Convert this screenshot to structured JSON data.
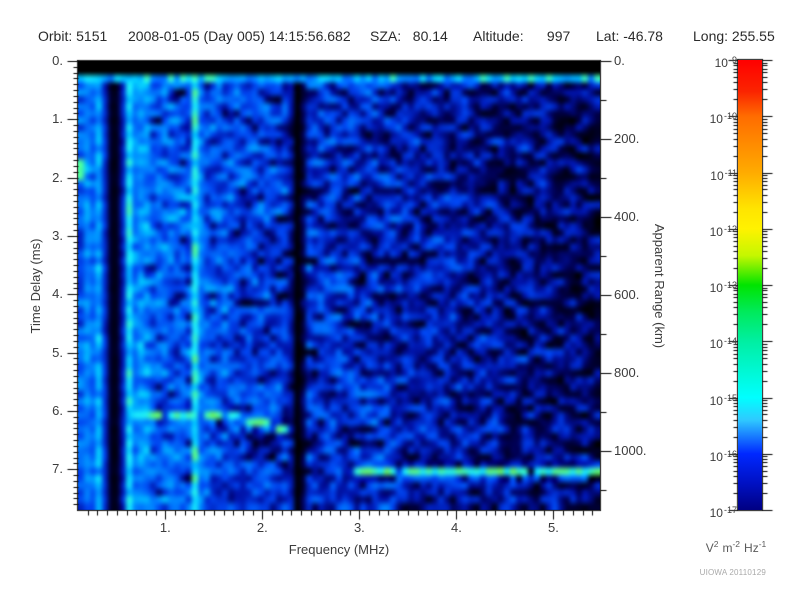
{
  "header": {
    "orbit": "Orbit: 5151",
    "datetime": "2008-01-05 (Day 005) 14:15:56.682",
    "sza": "SZA:   80.14",
    "altitude": "Altitude:      997",
    "lat": "Lat: -46.78",
    "long": "Long: 255.55"
  },
  "footer": {
    "credit": "UIOWA 20110129"
  },
  "chart_data": {
    "type": "heatmap",
    "title": "",
    "xlabel": "Frequency (MHz)",
    "ylabel": "Time Delay (ms)",
    "y2label": "Apparent Range (km)",
    "x_range_mhz": [
      0.1,
      5.48
    ],
    "y_range_ms": [
      0,
      7.7
    ],
    "y2_range_km": [
      0,
      1150
    ],
    "x_major_ticks": [
      1,
      2,
      3,
      4,
      5
    ],
    "x_major_labels": [
      "1.",
      "2.",
      "3.",
      "4.",
      "5."
    ],
    "x_minor_step_mhz": 0.1,
    "y_major_ticks": [
      0,
      1,
      2,
      3,
      4,
      5,
      6,
      7
    ],
    "y_major_labels": [
      "0.",
      "1.",
      "2.",
      "3.",
      "4.",
      "5.",
      "6.",
      "7."
    ],
    "y_minor_step_ms": 0.1,
    "y2_major_ticks": [
      0,
      200,
      400,
      600,
      800,
      1000
    ],
    "y2_major_labels": [
      "0.",
      "200.",
      "400.",
      "600.",
      "800.",
      "1000."
    ],
    "y2_minor_step_km": 100,
    "grid": false,
    "colorbar": {
      "scale": "log",
      "tick_base": "10",
      "tick_exponents": [
        "-9",
        "-10",
        "-11",
        "-12",
        "-13",
        "-14",
        "-15",
        "-16",
        "-17"
      ],
      "units_parts": [
        {
          "base": "V",
          "sup": "2"
        },
        {
          "base": "m",
          "sup": "-2"
        },
        {
          "base": "Hz",
          "sup": "-1"
        }
      ],
      "gradient": [
        {
          "p": 0.0,
          "c": "#ff0000"
        },
        {
          "p": 7.0,
          "c": "#fb2400"
        },
        {
          "p": 12.5,
          "c": "#ff6c00"
        },
        {
          "p": 25.0,
          "c": "#ffab00"
        },
        {
          "p": 33.0,
          "c": "#ffe400"
        },
        {
          "p": 37.5,
          "c": "#fff200"
        },
        {
          "p": 43.5,
          "c": "#c4f700"
        },
        {
          "p": 50.0,
          "c": "#00e400"
        },
        {
          "p": 56.0,
          "c": "#00ea5c"
        },
        {
          "p": 62.5,
          "c": "#00efa2"
        },
        {
          "p": 70.0,
          "c": "#00f9da"
        },
        {
          "p": 75.0,
          "c": "#00ffff"
        },
        {
          "p": 80.0,
          "c": "#2fc9ff"
        },
        {
          "p": 87.5,
          "c": "#0028ff"
        },
        {
          "p": 94.0,
          "c": "#0011c4"
        },
        {
          "p": 100.0,
          "c": "#000082"
        }
      ]
    },
    "colormap": [
      [
        0.0,
        0,
        0,
        0
      ],
      [
        0.12,
        0,
        0,
        80
      ],
      [
        0.25,
        0,
        20,
        170
      ],
      [
        0.42,
        0,
        70,
        240
      ],
      [
        0.58,
        0,
        130,
        255
      ],
      [
        0.72,
        0,
        195,
        255
      ],
      [
        0.84,
        30,
        240,
        250
      ],
      [
        0.92,
        70,
        250,
        170
      ],
      [
        1.0,
        110,
        250,
        90
      ]
    ],
    "features": {
      "transmit_blanking_band": {
        "t_ms": [
          0.0,
          0.22
        ],
        "f_mhz": [
          0.1,
          5.48
        ],
        "level": "black"
      },
      "band_edge_bright_row": {
        "t_ms": 0.3
      },
      "low_freq_interference_stripes": {
        "f_mhz": [
          0.1,
          0.8
        ]
      },
      "dark_absorption_lanes": {
        "f_mhz": [
          0.42,
          0.56
        ]
      },
      "narrowband_emission_line": {
        "f_mhz": 1.33
      },
      "absorption_band": {
        "f_mhz": [
          2.33,
          2.42
        ]
      },
      "ionospheric_echo_trace": {
        "f_mhz": [
          0.62,
          2.28
        ],
        "t_start_ms": 6.05,
        "t_end_ms": 6.3
      },
      "ground_echo": {
        "f_mhz": [
          3.0,
          5.48
        ],
        "t_ms": 7.0
      },
      "local_plasma_blob": {
        "f_mhz": [
          0.1,
          0.18
        ],
        "t_ms": [
          1.78,
          2.02
        ]
      }
    }
  }
}
